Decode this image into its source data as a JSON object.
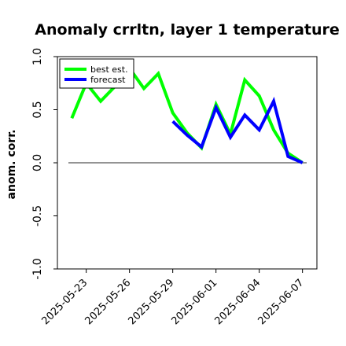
{
  "chart_data": {
    "type": "line",
    "title": "Anomaly crrltn, layer 1 temperature",
    "ylabel": "anom. corr.",
    "xlabel": "",
    "ylim": [
      -1.0,
      1.0
    ],
    "yticks": [
      -1.0,
      -0.5,
      0.0,
      0.5,
      1.0
    ],
    "x_axis": {
      "type": "date",
      "range": [
        "2025-05-21",
        "2025-06-08"
      ]
    },
    "xticks": [
      "2025-05-23",
      "2025-05-26",
      "2025-05-29",
      "2025-06-01",
      "2025-06-04",
      "2025-06-07"
    ],
    "highlighted_tick": "2025-05-29",
    "highlight_color": "#1a8a1a",
    "reference_line": 0.0,
    "grid": false,
    "legend_position": "top-left",
    "series": [
      {
        "name": "best est.",
        "color": "#00ff00",
        "points": [
          [
            "2025-05-22",
            0.42
          ],
          [
            "2025-05-23",
            0.75
          ],
          [
            "2025-05-24",
            0.58
          ],
          [
            "2025-05-25",
            0.72
          ],
          [
            "2025-05-26",
            0.89
          ],
          [
            "2025-05-27",
            0.7
          ],
          [
            "2025-05-28",
            0.84
          ],
          [
            "2025-05-29",
            0.47
          ],
          [
            "2025-05-30",
            0.28
          ],
          [
            "2025-05-31",
            0.14
          ],
          [
            "2025-06-01",
            0.55
          ],
          [
            "2025-06-02",
            0.27
          ],
          [
            "2025-06-03",
            0.78
          ],
          [
            "2025-06-04",
            0.63
          ],
          [
            "2025-06-05",
            0.31
          ],
          [
            "2025-06-06",
            0.09
          ],
          [
            "2025-06-07",
            0.0
          ]
        ]
      },
      {
        "name": "forecast",
        "color": "#0000ff",
        "points": [
          [
            "2025-05-29",
            0.39
          ],
          [
            "2025-05-30",
            0.26
          ],
          [
            "2025-05-31",
            0.15
          ],
          [
            "2025-06-01",
            0.52
          ],
          [
            "2025-06-02",
            0.24
          ],
          [
            "2025-06-03",
            0.45
          ],
          [
            "2025-06-04",
            0.31
          ],
          [
            "2025-06-05",
            0.58
          ],
          [
            "2025-06-06",
            0.06
          ],
          [
            "2025-06-07",
            0.0
          ]
        ]
      }
    ]
  }
}
